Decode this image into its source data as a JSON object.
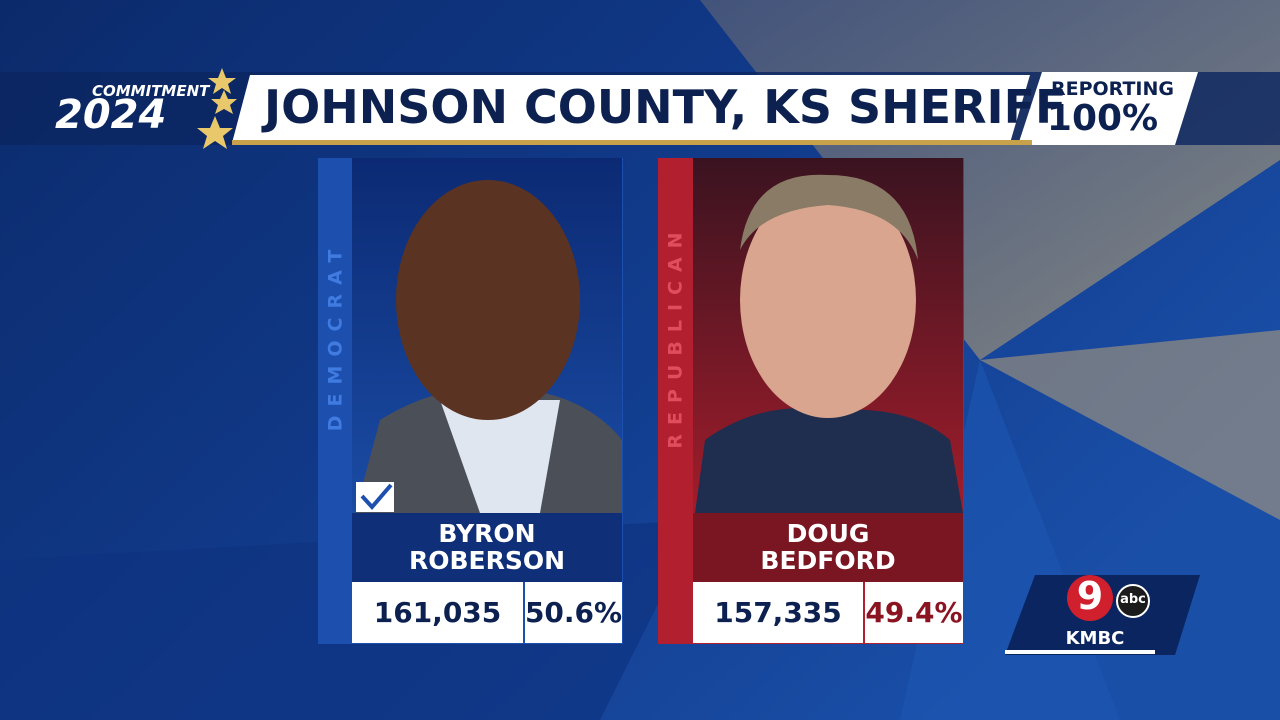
{
  "branding": {
    "line1": "COMMITMENT",
    "line2": "2024"
  },
  "header": {
    "title": "JOHNSON COUNTY, KS SHERIFF",
    "reporting_label": "REPORTING",
    "reporting_value": "100%"
  },
  "candidates": [
    {
      "party": "DEMOCRAT",
      "name": [
        "BYRON",
        "ROBERSON"
      ],
      "votes": "161,035",
      "percent": "50.6%"
    },
    {
      "party": "REPUBLICAN",
      "name": [
        "DOUG",
        "BEDFORD"
      ],
      "votes": "157,335",
      "percent": "49.4%"
    }
  ],
  "station": {
    "channel": "9",
    "network": "abc",
    "call_sign": "KMBC"
  }
}
